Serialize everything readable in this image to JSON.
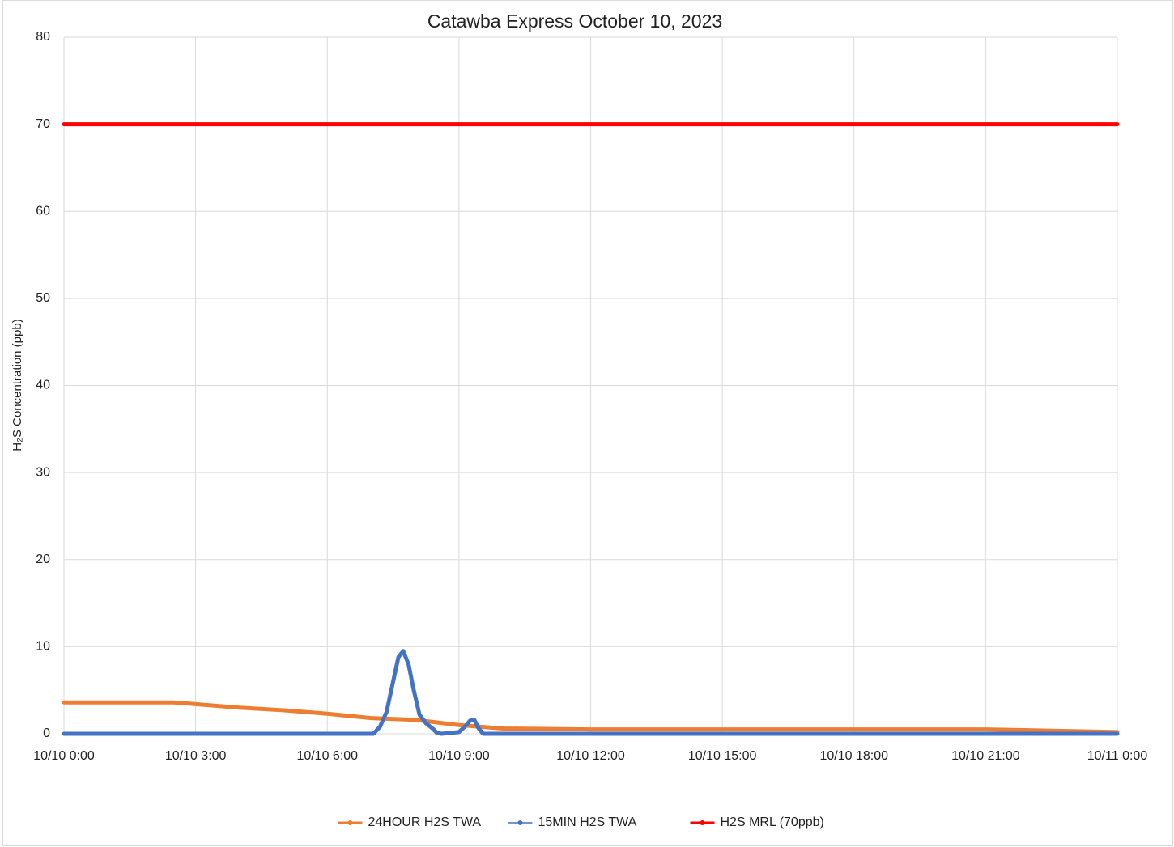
{
  "chart_data": {
    "type": "line",
    "title": "Catawba Express October 10, 2023",
    "y_label": "H₂S Concentration (ppb)",
    "xlim": [
      0,
      24
    ],
    "xticks": [
      {
        "value": 0,
        "label": "10/10 0:00"
      },
      {
        "value": 3,
        "label": "10/10 3:00"
      },
      {
        "value": 6,
        "label": "10/10 6:00"
      },
      {
        "value": 9,
        "label": "10/10 9:00"
      },
      {
        "value": 12,
        "label": "10/10 12:00"
      },
      {
        "value": 15,
        "label": "10/10 15:00"
      },
      {
        "value": 18,
        "label": "10/10 18:00"
      },
      {
        "value": 21,
        "label": "10/10 21:00"
      },
      {
        "value": 24,
        "label": "10/11 0:00"
      }
    ],
    "ylim": [
      0,
      80
    ],
    "yticks": [
      0,
      10,
      20,
      30,
      40,
      50,
      60,
      70,
      80
    ],
    "grid": true,
    "legend": "bottom",
    "series": [
      {
        "name": "24HOUR H2S TWA",
        "color": "#ED7D31",
        "x": [
          0,
          2.5,
          3,
          4,
          5,
          6,
          7,
          8,
          9,
          10,
          12,
          15,
          18,
          21,
          23,
          24
        ],
        "values": [
          3.6,
          3.6,
          3.4,
          3.0,
          2.7,
          2.3,
          1.8,
          1.6,
          1.0,
          0.6,
          0.5,
          0.5,
          0.5,
          0.5,
          0.3,
          0.2
        ]
      },
      {
        "name": "15MIN H2S TWA",
        "color": "#4472C4",
        "x": [
          0,
          7.05,
          7.2,
          7.35,
          7.5,
          7.62,
          7.73,
          7.85,
          7.97,
          8.1,
          8.25,
          8.4,
          8.5,
          8.6,
          9.0,
          9.15,
          9.25,
          9.35,
          9.45,
          9.55,
          12,
          24
        ],
        "values": [
          0,
          0,
          0.8,
          2.5,
          6.0,
          8.8,
          9.5,
          8.0,
          5.0,
          2.2,
          1.2,
          0.6,
          0.1,
          0,
          0.2,
          0.9,
          1.5,
          1.6,
          0.6,
          0,
          0,
          0
        ]
      },
      {
        "name": "H2S MRL (70ppb)",
        "color": "#FF0000",
        "x": [
          0,
          24
        ],
        "values": [
          70,
          70
        ]
      }
    ]
  }
}
